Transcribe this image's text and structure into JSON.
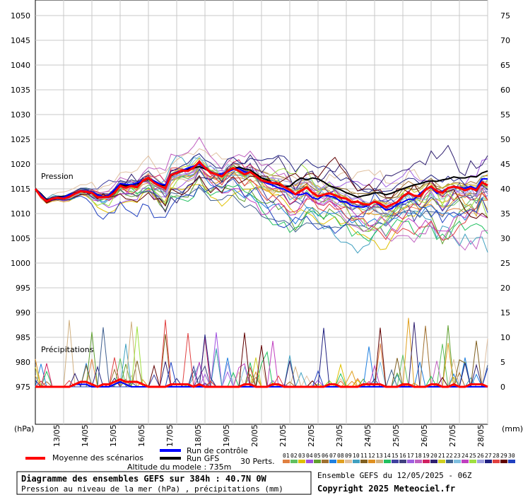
{
  "chart_data": {
    "type": "line",
    "left_axis_label": "(hPa)",
    "right_axis_label": "(mm)",
    "left_ticks": [
      1050,
      1045,
      1040,
      1035,
      1030,
      1025,
      1020,
      1015,
      1010,
      1005,
      1000,
      995,
      990,
      985,
      980,
      975
    ],
    "right_ticks": [
      75,
      70,
      65,
      60,
      55,
      50,
      45,
      40,
      35,
      30,
      25,
      20,
      15,
      10,
      5,
      0
    ],
    "x_ticks": [
      "13/05",
      "14/05",
      "15/05",
      "16/05",
      "17/05",
      "18/05",
      "19/05",
      "20/05",
      "21/05",
      "22/05",
      "23/05",
      "24/05",
      "25/05",
      "26/05",
      "27/05",
      "28/05"
    ],
    "pressure_ylim": [
      975,
      1050
    ],
    "precip_ylim": [
      0,
      75
    ],
    "annotations": {
      "pression": "Pression",
      "precipitations": "Précipitations"
    },
    "series": [
      {
        "name": "Moyenne des scénarios",
        "color": "#ff0000",
        "pressure": [
          1015,
          1013.4,
          1012.5,
          1013,
          1013.2,
          1013,
          1013.4,
          1014,
          1014.5,
          1014.4,
          1014.2,
          1013.3,
          1013.3,
          1013.4,
          1014.2,
          1015.6,
          1015.2,
          1015.6,
          1015.3,
          1016.6,
          1017.2,
          1016.2,
          1015.6,
          1015.1,
          1017.8,
          1018.2,
          1018.7,
          1018.6,
          1019.3,
          1020.4,
          1019.3,
          1018.3,
          1017.9,
          1017.5,
          1018.6,
          1019.2,
          1018.6,
          1017.9,
          1018.4,
          1017.6,
          1016.7,
          1016.4,
          1016.2,
          1016.1,
          1015.4,
          1014.8,
          1013.9,
          1014.6,
          1015.3,
          1014.2,
          1013.5,
          1013.8,
          1014.1,
          1013.7,
          1013.2,
          1013,
          1012.3,
          1012.4,
          1011.9,
          1011.8,
          1012.4,
          1012,
          1011.3,
          1011.8,
          1012.3,
          1013.5,
          1014.2,
          1013.6,
          1013.5,
          1014.8,
          1015.5,
          1014.5,
          1014.2,
          1015.2,
          1015.4,
          1015.2,
          1014.7,
          1015.1,
          1014.7,
          1016.3,
          1015.7
        ],
        "precip": [
          0,
          0,
          0,
          0,
          0,
          0,
          0,
          0.5,
          1,
          1,
          0.5,
          0,
          0.5,
          0.5,
          1,
          1.5,
          1,
          1,
          1,
          0.5,
          0,
          0,
          0,
          0,
          0.5,
          0.5,
          0.5,
          0.5,
          0,
          0.5,
          0,
          0,
          0,
          0,
          0,
          0,
          0,
          0.5,
          0.5,
          0,
          0,
          0,
          0.5,
          0.5,
          0,
          0,
          0,
          0,
          0,
          0,
          0,
          0,
          0.5,
          0.5,
          0,
          0,
          0,
          0,
          0.5,
          0.5,
          0.5,
          0.5,
          0,
          0,
          0,
          0.5,
          0.5,
          0,
          0,
          0,
          0.5,
          0.5,
          0,
          0,
          0.5,
          0,
          0,
          0.5,
          0.5,
          0.5,
          0
        ]
      },
      {
        "name": "Run de contrôle",
        "color": "#0000ff",
        "pressure": [
          1015,
          1013.8,
          1012.6,
          1012.8,
          1013.2,
          1013.3,
          1013.8,
          1014.1,
          1014.6,
          1014.5,
          1014.4,
          1013.8,
          1013.4,
          1013.7,
          1014.8,
          1016.1,
          1015.9,
          1015.8,
          1016.2,
          1016.7,
          1017.2,
          1016.6,
          1016,
          1015.8,
          1017.9,
          1018.4,
          1018.7,
          1019.2,
          1019.6,
          1020,
          1019.2,
          1018.5,
          1017.9,
          1018,
          1018.4,
          1018.9,
          1019.1,
          1018.4,
          1018.4,
          1017.5,
          1016.6,
          1016.1,
          1015.7,
          1015.2,
          1014.9,
          1014.3,
          1013.8,
          1013.8,
          1014.2,
          1013.2,
          1012.9,
          1013.8,
          1013.5,
          1013.3,
          1012.4,
          1012.3,
          1011.6,
          1011.4,
          1011.3,
          1011.7,
          1012.4,
          1011.6,
          1010.7,
          1011,
          1011.9,
          1012.3,
          1012.9,
          1012.9,
          1014,
          1014.9,
          1015.3,
          1014.1,
          1014.5,
          1015.2,
          1015.5,
          1015.3,
          1015.1,
          1015.5,
          1015,
          1017,
          1017
        ],
        "precip": [
          0,
          0,
          0,
          0,
          0,
          0,
          0,
          0.5,
          0.5,
          0.5,
          0,
          0,
          0,
          0,
          0.5,
          1,
          0.5,
          0,
          0,
          0,
          0,
          0,
          0,
          0,
          0,
          0,
          0,
          0,
          0,
          0,
          0,
          0,
          0,
          0,
          0,
          0,
          0,
          0,
          0,
          0,
          0,
          0,
          0,
          0,
          0,
          0,
          0,
          0,
          0,
          0,
          0,
          0,
          0,
          0,
          0,
          0,
          0,
          0,
          0,
          0,
          0,
          0,
          0,
          0,
          0,
          0,
          0,
          0,
          0,
          0,
          0,
          0,
          0,
          0,
          0,
          0,
          0,
          0,
          0,
          0,
          0
        ]
      },
      {
        "name": "Run GFS",
        "color": "#000000",
        "pressure": [
          1015,
          1014,
          1012.8,
          1012.9,
          1013.3,
          1013.5,
          1013.6,
          1014.2,
          1014.5,
          1014.4,
          1014.2,
          1013.8,
          1013.4,
          1013.7,
          1014.5,
          1015.8,
          1015.6,
          1015.8,
          1016,
          1016.5,
          1017,
          1016.2,
          1015.8,
          1015.6,
          1017.6,
          1018.2,
          1018.5,
          1019,
          1019.2,
          1019.5,
          1019,
          1018.4,
          1017.9,
          1018,
          1018.5,
          1019,
          1019.4,
          1019,
          1018.8,
          1018,
          1017.2,
          1016.8,
          1016.2,
          1015.8,
          1015.4,
          1015.5,
          1016.5,
          1017.2,
          1016.8,
          1017.2,
          1017,
          1016.4,
          1015.6,
          1015.2,
          1014.8,
          1014.2,
          1013.8,
          1013.3,
          1013.6,
          1013.8,
          1014.2,
          1014.2,
          1013.8,
          1014.1,
          1014.6,
          1015,
          1015.4,
          1015.8,
          1016,
          1016.4,
          1016.6,
          1016.5,
          1016.8,
          1017,
          1017.4,
          1017.2,
          1017.2,
          1017.5,
          1017.4,
          1018.2,
          1018.6
        ],
        "precip": [
          0,
          0,
          0,
          0,
          0,
          0,
          0,
          0.5,
          0.5,
          0.5,
          0,
          0,
          0,
          0,
          0.5,
          1,
          0.5,
          0,
          0,
          0,
          0,
          0,
          0,
          0,
          0,
          0,
          0,
          0,
          0,
          0,
          0,
          0,
          0,
          0,
          0,
          0,
          0,
          0,
          0,
          0,
          0,
          0,
          0,
          0,
          0,
          0,
          0,
          0,
          0,
          0,
          0,
          0,
          0,
          0,
          0,
          0,
          0,
          0,
          0,
          0,
          0,
          0,
          0,
          0,
          0,
          0,
          0,
          0,
          0,
          0,
          0,
          0,
          0,
          0,
          0,
          0,
          0,
          0,
          0,
          0,
          0
        ]
      }
    ],
    "perturbations": {
      "count": 30,
      "colors": [
        "#e08040",
        "#60c060",
        "#e0c000",
        "#a050e0",
        "#60a030",
        "#a07030",
        "#2080e0",
        "#e0a020",
        "#e0c0a0",
        "#40a0c0",
        "#806020",
        "#e09020",
        "#d0b080",
        "#20c060",
        "#4040a0",
        "#404080",
        "#a060e0",
        "#c060c0",
        "#d02060",
        "#302070",
        "#d0d020",
        "#406090",
        "#80c0e0",
        "#c040c0",
        "#a0e040",
        "#a0a0e0",
        "#202080",
        "#e04040",
        "#600000",
        "#2040c0"
      ]
    }
  },
  "legend": {
    "mean_label": "Moyenne des scénarios",
    "control_label": "Run de contrôle",
    "gfs_label": "Run GFS",
    "perts_label": "30 Perts.",
    "pert_numbers": [
      "01",
      "02",
      "03",
      "04",
      "05",
      "06",
      "07",
      "08",
      "09",
      "10",
      "11",
      "12",
      "13",
      "14",
      "15",
      "16",
      "17",
      "18",
      "19",
      "20",
      "21",
      "22",
      "23",
      "24",
      "25",
      "26",
      "27",
      "28",
      "29",
      "30"
    ],
    "altitude": "Altitude du modele : 735m"
  },
  "footer": {
    "title": "Diagramme des ensembles GEFS sur 384h : 40.7N 0W",
    "subtitle": "Pression au niveau de la mer (hPa) , précipitations (mm)",
    "run_info": "Ensemble GEFS du 12/05/2025 - 06Z",
    "copyright": "Copyright 2025 Meteociel.fr"
  }
}
